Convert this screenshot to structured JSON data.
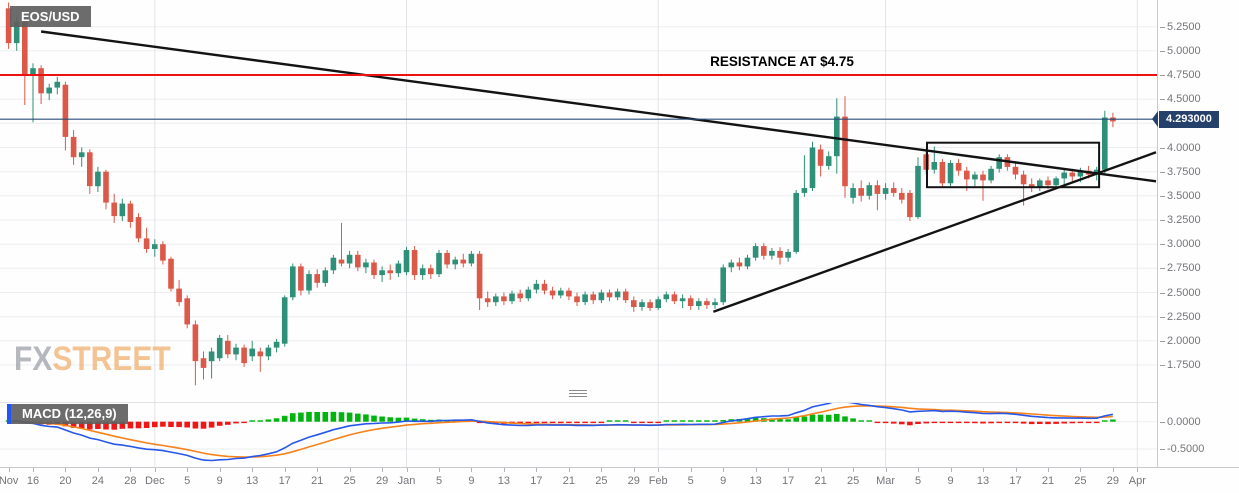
{
  "symbol_label": "EOS/USD",
  "indicator_label": "MACD (12,26,9)",
  "watermark": {
    "fx": "FX",
    "street": "STREET"
  },
  "price_axis": {
    "labels": [
      "5.2500",
      "5.0000",
      "4.7500",
      "4.5000",
      "4.2500",
      "4.0000",
      "3.7500",
      "3.5000",
      "3.2500",
      "3.0000",
      "2.7500",
      "2.5000",
      "2.2500",
      "2.0000",
      "1.7500"
    ],
    "current_price_label": "4.293000"
  },
  "macd_axis": {
    "labels": [
      "0.0000",
      "-0.5000"
    ]
  },
  "time_axis": {
    "ticks": [
      {
        "label": "Nov",
        "day": 0,
        "month": true
      },
      {
        "label": "16",
        "day": 3
      },
      {
        "label": "20",
        "day": 7
      },
      {
        "label": "24",
        "day": 11
      },
      {
        "label": "28",
        "day": 15
      },
      {
        "label": "Dec",
        "day": 18,
        "month": true
      },
      {
        "label": "5",
        "day": 22
      },
      {
        "label": "9",
        "day": 26
      },
      {
        "label": "13",
        "day": 30
      },
      {
        "label": "17",
        "day": 34
      },
      {
        "label": "21",
        "day": 38
      },
      {
        "label": "25",
        "day": 42
      },
      {
        "label": "29",
        "day": 46
      },
      {
        "label": "Jan",
        "day": 49,
        "month": true
      },
      {
        "label": "5",
        "day": 53
      },
      {
        "label": "9",
        "day": 57
      },
      {
        "label": "13",
        "day": 61
      },
      {
        "label": "17",
        "day": 65
      },
      {
        "label": "21",
        "day": 69
      },
      {
        "label": "25",
        "day": 73
      },
      {
        "label": "29",
        "day": 77
      },
      {
        "label": "Feb",
        "day": 80,
        "month": true
      },
      {
        "label": "5",
        "day": 84
      },
      {
        "label": "9",
        "day": 88
      },
      {
        "label": "13",
        "day": 92
      },
      {
        "label": "17",
        "day": 96
      },
      {
        "label": "21",
        "day": 100
      },
      {
        "label": "25",
        "day": 104
      },
      {
        "label": "Mar",
        "day": 108,
        "month": true
      },
      {
        "label": "5",
        "day": 112
      },
      {
        "label": "9",
        "day": 116
      },
      {
        "label": "13",
        "day": 120
      },
      {
        "label": "17",
        "day": 124
      },
      {
        "label": "21",
        "day": 128
      },
      {
        "label": "25",
        "day": 132
      },
      {
        "label": "29",
        "day": 136
      },
      {
        "label": "Apr",
        "day": 139,
        "month": true
      }
    ]
  },
  "colors": {
    "up": "#2e9078",
    "down": "#dc5849",
    "resistance": "#ee1111",
    "price_line": "#2a4d79",
    "price_badge_bg": "#24406b",
    "trend": "#131313",
    "grid": "#ebedf0",
    "month_grid": "#e2e4e8",
    "macd_line": "#2757e8",
    "signal_line": "#f7821b",
    "hist_up": "#00b30e",
    "hist_down": "#f01616",
    "macd_colorbar": "#2156f5"
  },
  "chart_data": {
    "type": "candlestick+macd",
    "title": "EOS/USD daily candlestick chart with MACD (12,26,9)",
    "interval": "daily",
    "first_candle_label": "Nov 13",
    "ylim": [
      1.55,
      5.45
    ],
    "resistance_level": 4.75,
    "resistance_text": "RESISTANCE AT $4.75",
    "current_price": 4.293,
    "macd_params": {
      "fast": 12,
      "slow": 26,
      "signal": 9
    },
    "annotations": {
      "trendlines": [
        {
          "name": "descending-trendline",
          "day1": 4,
          "price1": 5.2,
          "day2": 141.3,
          "price2": 3.65
        },
        {
          "name": "ascending-trendline",
          "day1": 86.8,
          "price1": 2.3,
          "day2": 141.3,
          "price2": 3.95
        }
      ],
      "consolidation_box": {
        "day_from": 113.1,
        "day_to": 134.3,
        "price_top": 4.05,
        "price_bottom": 3.59
      }
    },
    "candles_ohlc": [
      [
        5.44,
        5.5,
        5.02,
        5.08
      ],
      [
        5.08,
        5.35,
        5.0,
        5.3
      ],
      [
        5.3,
        5.34,
        4.44,
        4.74
      ],
      [
        4.74,
        4.87,
        4.26,
        4.82
      ],
      [
        4.82,
        4.85,
        4.45,
        4.56
      ],
      [
        4.56,
        4.66,
        4.49,
        4.62
      ],
      [
        4.62,
        4.73,
        4.55,
        4.68
      ],
      [
        4.65,
        4.68,
        3.97,
        4.11
      ],
      [
        4.11,
        4.18,
        3.82,
        3.9
      ],
      [
        3.9,
        4.0,
        3.8,
        3.95
      ],
      [
        3.95,
        3.98,
        3.52,
        3.6
      ],
      [
        3.6,
        3.8,
        3.54,
        3.75
      ],
      [
        3.75,
        3.77,
        3.36,
        3.43
      ],
      [
        3.43,
        3.52,
        3.22,
        3.29
      ],
      [
        3.29,
        3.47,
        3.24,
        3.42
      ],
      [
        3.42,
        3.45,
        3.17,
        3.23
      ],
      [
        3.28,
        3.32,
        3.02,
        3.06
      ],
      [
        3.06,
        3.17,
        2.91,
        2.95
      ],
      [
        2.95,
        3.05,
        2.87,
        3.0
      ],
      [
        3.0,
        3.03,
        2.79,
        2.83
      ],
      [
        2.85,
        2.87,
        2.51,
        2.54
      ],
      [
        2.54,
        2.63,
        2.36,
        2.4
      ],
      [
        2.44,
        2.47,
        2.13,
        2.17
      ],
      [
        2.17,
        2.21,
        1.54,
        1.79
      ],
      [
        1.82,
        1.89,
        1.6,
        1.72
      ],
      [
        1.79,
        1.93,
        1.61,
        1.89
      ],
      [
        1.82,
        2.06,
        1.79,
        2.03
      ],
      [
        2.0,
        2.06,
        1.82,
        1.86
      ],
      [
        1.86,
        1.97,
        1.8,
        1.93
      ],
      [
        1.93,
        1.96,
        1.73,
        1.77
      ],
      [
        1.84,
        2.0,
        1.79,
        1.92
      ],
      [
        1.89,
        1.93,
        1.68,
        1.84
      ],
      [
        1.84,
        1.96,
        1.8,
        1.93
      ],
      [
        1.93,
        2.02,
        1.88,
        1.99
      ],
      [
        1.97,
        2.47,
        1.94,
        2.45
      ],
      [
        2.45,
        2.8,
        2.42,
        2.77
      ],
      [
        2.77,
        2.8,
        2.47,
        2.52
      ],
      [
        2.52,
        2.73,
        2.48,
        2.69
      ],
      [
        2.69,
        2.74,
        2.55,
        2.6
      ],
      [
        2.6,
        2.76,
        2.56,
        2.73
      ],
      [
        2.73,
        2.89,
        2.69,
        2.86
      ],
      [
        2.84,
        3.22,
        2.77,
        2.8
      ],
      [
        2.8,
        2.93,
        2.75,
        2.89
      ],
      [
        2.89,
        2.93,
        2.72,
        2.76
      ],
      [
        2.76,
        2.85,
        2.7,
        2.81
      ],
      [
        2.81,
        2.84,
        2.64,
        2.68
      ],
      [
        2.68,
        2.77,
        2.61,
        2.73
      ],
      [
        2.73,
        2.79,
        2.63,
        2.7
      ],
      [
        2.7,
        2.83,
        2.66,
        2.8
      ],
      [
        2.71,
        2.97,
        2.68,
        2.94
      ],
      [
        2.94,
        2.98,
        2.63,
        2.68
      ],
      [
        2.68,
        2.79,
        2.63,
        2.75
      ],
      [
        2.75,
        2.79,
        2.64,
        2.69
      ],
      [
        2.69,
        2.94,
        2.66,
        2.91
      ],
      [
        2.91,
        2.94,
        2.75,
        2.79
      ],
      [
        2.79,
        2.87,
        2.74,
        2.84
      ],
      [
        2.84,
        2.9,
        2.76,
        2.8
      ],
      [
        2.8,
        2.93,
        2.77,
        2.9
      ],
      [
        2.9,
        2.93,
        2.32,
        2.44
      ],
      [
        2.44,
        2.51,
        2.35,
        2.4
      ],
      [
        2.4,
        2.49,
        2.36,
        2.46
      ],
      [
        2.46,
        2.5,
        2.37,
        2.41
      ],
      [
        2.41,
        2.52,
        2.38,
        2.49
      ],
      [
        2.49,
        2.53,
        2.4,
        2.44
      ],
      [
        2.44,
        2.56,
        2.41,
        2.53
      ],
      [
        2.53,
        2.63,
        2.49,
        2.59
      ],
      [
        2.59,
        2.63,
        2.48,
        2.52
      ],
      [
        2.52,
        2.56,
        2.43,
        2.47
      ],
      [
        2.47,
        2.55,
        2.44,
        2.52
      ],
      [
        2.52,
        2.55,
        2.42,
        2.46
      ],
      [
        2.46,
        2.5,
        2.36,
        2.4
      ],
      [
        2.4,
        2.51,
        2.37,
        2.48
      ],
      [
        2.48,
        2.51,
        2.38,
        2.42
      ],
      [
        2.42,
        2.53,
        2.39,
        2.5
      ],
      [
        2.5,
        2.53,
        2.41,
        2.45
      ],
      [
        2.45,
        2.54,
        2.42,
        2.51
      ],
      [
        2.51,
        2.54,
        2.39,
        2.42
      ],
      [
        2.42,
        2.46,
        2.3,
        2.35
      ],
      [
        2.35,
        2.43,
        2.31,
        2.4
      ],
      [
        2.4,
        2.43,
        2.31,
        2.34
      ],
      [
        2.34,
        2.46,
        2.32,
        2.43
      ],
      [
        2.43,
        2.51,
        2.4,
        2.48
      ],
      [
        2.48,
        2.51,
        2.38,
        2.41
      ],
      [
        2.41,
        2.48,
        2.34,
        2.44
      ],
      [
        2.44,
        2.47,
        2.32,
        2.36
      ],
      [
        2.36,
        2.44,
        2.32,
        2.41
      ],
      [
        2.41,
        2.44,
        2.33,
        2.37
      ],
      [
        2.37,
        2.44,
        2.33,
        2.4
      ],
      [
        2.4,
        2.79,
        2.37,
        2.76
      ],
      [
        2.76,
        2.84,
        2.71,
        2.81
      ],
      [
        2.81,
        2.86,
        2.73,
        2.77
      ],
      [
        2.77,
        2.89,
        2.74,
        2.86
      ],
      [
        2.86,
        3.01,
        2.83,
        2.98
      ],
      [
        2.98,
        3.01,
        2.84,
        2.88
      ],
      [
        2.88,
        2.96,
        2.84,
        2.93
      ],
      [
        2.93,
        2.97,
        2.79,
        2.86
      ],
      [
        2.86,
        2.95,
        2.82,
        2.92
      ],
      [
        2.92,
        3.56,
        2.9,
        3.53
      ],
      [
        3.53,
        3.92,
        3.49,
        3.58
      ],
      [
        3.58,
        4.06,
        3.55,
        4.0
      ],
      [
        3.98,
        4.03,
        3.7,
        3.81
      ],
      [
        3.81,
        3.96,
        3.77,
        3.91
      ],
      [
        3.91,
        4.51,
        3.73,
        4.32
      ],
      [
        4.32,
        4.53,
        3.48,
        3.6
      ],
      [
        3.48,
        3.63,
        3.42,
        3.58
      ],
      [
        3.58,
        3.66,
        3.44,
        3.5
      ],
      [
        3.5,
        3.64,
        3.46,
        3.61
      ],
      [
        3.61,
        3.66,
        3.35,
        3.52
      ],
      [
        3.52,
        3.63,
        3.46,
        3.58
      ],
      [
        3.58,
        3.64,
        3.49,
        3.53
      ],
      [
        3.53,
        3.58,
        3.42,
        3.46
      ],
      [
        3.53,
        3.56,
        3.24,
        3.28
      ],
      [
        3.28,
        3.9,
        3.26,
        3.81
      ],
      [
        3.93,
        3.99,
        3.72,
        3.77
      ],
      [
        3.77,
        4.01,
        3.73,
        3.85
      ],
      [
        3.85,
        3.88,
        3.58,
        3.63
      ],
      [
        3.63,
        3.87,
        3.6,
        3.84
      ],
      [
        3.84,
        3.88,
        3.71,
        3.76
      ],
      [
        3.76,
        3.8,
        3.55,
        3.67
      ],
      [
        3.67,
        3.75,
        3.6,
        3.72
      ],
      [
        3.72,
        3.76,
        3.45,
        3.66
      ],
      [
        3.66,
        3.81,
        3.63,
        3.78
      ],
      [
        3.78,
        3.93,
        3.74,
        3.9
      ],
      [
        3.9,
        3.93,
        3.76,
        3.8
      ],
      [
        3.8,
        3.84,
        3.67,
        3.72
      ],
      [
        3.72,
        3.76,
        3.4,
        3.62
      ],
      [
        3.62,
        3.68,
        3.54,
        3.59
      ],
      [
        3.59,
        3.68,
        3.55,
        3.66
      ],
      [
        3.66,
        3.7,
        3.57,
        3.61
      ],
      [
        3.61,
        3.7,
        3.57,
        3.68
      ],
      [
        3.68,
        3.77,
        3.62,
        3.74
      ],
      [
        3.74,
        3.78,
        3.65,
        3.7
      ],
      [
        3.7,
        3.79,
        3.64,
        3.76
      ],
      [
        3.76,
        3.81,
        3.68,
        3.72
      ],
      [
        3.72,
        3.8,
        3.66,
        3.77
      ],
      [
        3.77,
        4.38,
        3.72,
        4.31
      ],
      [
        4.31,
        4.36,
        4.21,
        4.27
      ]
    ]
  }
}
